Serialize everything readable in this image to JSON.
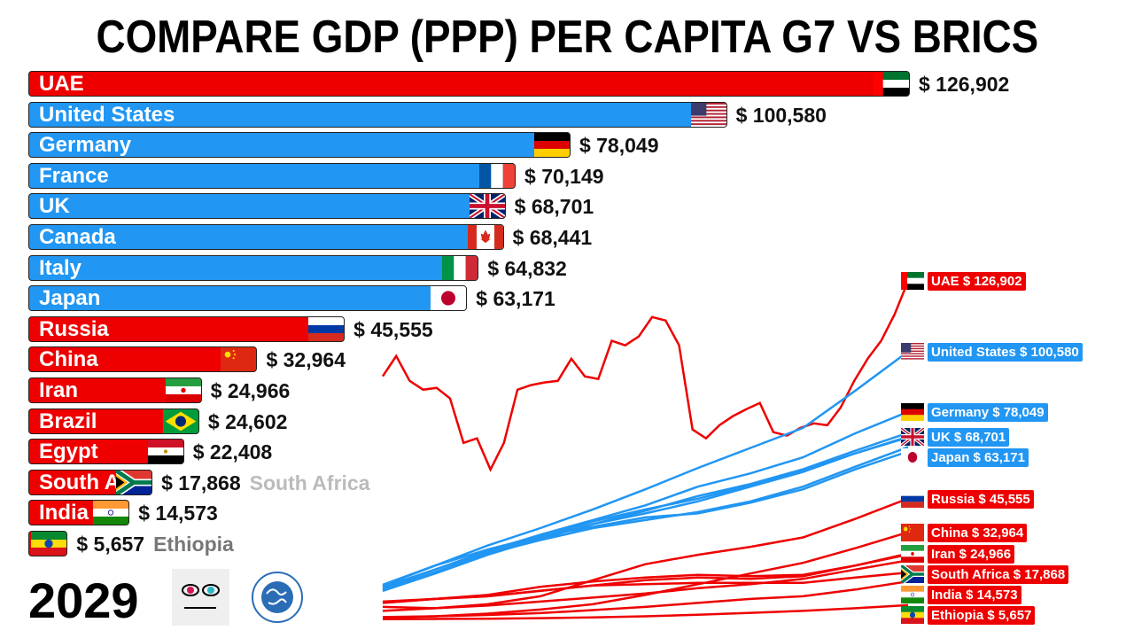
{
  "title": "COMPARE GDP (PPP) PER CAPITA G7 VS BRICS",
  "year": "2029",
  "logos": {
    "channel": "Mstats",
    "source": "International Monetary Fund"
  },
  "colors": {
    "brics": "#ee0000",
    "g7": "#2196f3"
  },
  "chart_data": {
    "type": "bar",
    "title": "COMPARE GDP (PPP) PER CAPITA G7 VS BRICS",
    "unit": "$",
    "categories": [
      "UAE",
      "United States",
      "Germany",
      "France",
      "UK",
      "Canada",
      "Italy",
      "Japan",
      "Russia",
      "China",
      "Iran",
      "Brazil",
      "Egypt",
      "South Africa",
      "India",
      "Ethiopia"
    ],
    "bars": [
      {
        "name": "UAE",
        "label": "UAE",
        "value": 126902,
        "value_label": "$ 126,902",
        "group": "brics",
        "flag": "uae-flag"
      },
      {
        "name": "United States",
        "label": "United States",
        "value": 100580,
        "value_label": "$ 100,580",
        "group": "g7",
        "flag": "usa-flag"
      },
      {
        "name": "Germany",
        "label": "Germany",
        "value": 78049,
        "value_label": "$ 78,049",
        "group": "g7",
        "flag": "germany-flag"
      },
      {
        "name": "France",
        "label": "France",
        "value": 70149,
        "value_label": "$ 70,149",
        "group": "g7",
        "flag": "france-flag"
      },
      {
        "name": "UK",
        "label": "UK",
        "value": 68701,
        "value_label": "$ 68,701",
        "group": "g7",
        "flag": "uk-flag"
      },
      {
        "name": "Canada",
        "label": "Canada",
        "value": 68441,
        "value_label": "$ 68,441",
        "group": "g7",
        "flag": "canada-flag"
      },
      {
        "name": "Italy",
        "label": "Italy",
        "value": 64832,
        "value_label": "$ 64,832",
        "group": "g7",
        "flag": "italy-flag"
      },
      {
        "name": "Japan",
        "label": "Japan",
        "value": 63171,
        "value_label": "$ 63,171",
        "group": "g7",
        "flag": "japan-flag"
      },
      {
        "name": "Russia",
        "label": "Russia",
        "value": 45555,
        "value_label": "$ 45,555",
        "group": "brics",
        "flag": "russia-flag"
      },
      {
        "name": "China",
        "label": "China",
        "value": 32964,
        "value_label": "$ 32,964",
        "group": "brics",
        "flag": "china-flag"
      },
      {
        "name": "Iran",
        "label": "Iran",
        "value": 24966,
        "value_label": "$ 24,966",
        "group": "brics",
        "flag": "iran-flag"
      },
      {
        "name": "Brazil",
        "label": "Brazil",
        "value": 24602,
        "value_label": "$ 24,602",
        "group": "brics",
        "flag": "brazil-flag"
      },
      {
        "name": "Egypt",
        "label": "Egypt",
        "value": 22408,
        "value_label": "$ 22,408",
        "group": "brics",
        "flag": "egypt-flag"
      },
      {
        "name": "South Africa",
        "label": "South Africa",
        "value": 17868,
        "value_label": "$ 17,868",
        "group": "brics",
        "flag": "south-africa-flag",
        "outside_name": "South Africa"
      },
      {
        "name": "India",
        "label": "India",
        "value": 14573,
        "value_label": "$ 14,573",
        "group": "brics",
        "flag": "india-flag"
      },
      {
        "name": "Ethiopia",
        "label": "",
        "value": 5657,
        "value_label": "$ 5,657",
        "group": "brics",
        "flag": "ethiopia-flag",
        "outside_name": "Ethiopia"
      }
    ],
    "line_chart": {
      "type": "line",
      "ylim": [
        0,
        130000
      ],
      "grid": false,
      "series": [
        {
          "name": "UAE",
          "label": "UAE $ 126,902",
          "group": "brics",
          "flag": "uae-flag",
          "values": [
            91300,
            98900,
            89600,
            86300,
            87000,
            83000,
            66400,
            68100,
            56400,
            66400,
            86300,
            88000,
            89000,
            89600,
            97900,
            91300,
            90300,
            104600,
            102900,
            106200,
            113500,
            112200,
            102900,
            71400,
            68100,
            73000,
            76400,
            79000,
            81300,
            70400,
            69100,
            72000,
            73700,
            73000,
            79700,
            89600,
            97900,
            104600,
            114500,
            126902
          ]
        },
        {
          "name": "United States",
          "label": "United States $ 100,580",
          "group": "g7",
          "flag": "usa-flag",
          "values": [
            13300,
            20500,
            28000,
            34500,
            41500,
            49000,
            57000,
            64500,
            72000,
            86000,
            100580
          ]
        },
        {
          "name": "Germany",
          "label": "Germany $ 78,049",
          "group": "g7",
          "flag": "germany-flag",
          "values": [
            12000,
            19000,
            26000,
            32000,
            37500,
            43000,
            50000,
            55000,
            61000,
            70000,
            78049
          ]
        },
        {
          "name": "France",
          "label": "",
          "group": "g7",
          "flag": "",
          "values": [
            11500,
            18000,
            25000,
            30500,
            36000,
            41000,
            46500,
            51000,
            56500,
            63500,
            70149
          ]
        },
        {
          "name": "Canada",
          "label": "",
          "group": "g7",
          "flag": "",
          "values": [
            12500,
            19000,
            25500,
            31000,
            37000,
            41500,
            45500,
            50500,
            56000,
            62500,
            68441
          ]
        },
        {
          "name": "UK",
          "label": "UK $ 68,701",
          "group": "g7",
          "flag": "uk-flag",
          "values": [
            11000,
            17500,
            24500,
            30500,
            36000,
            40000,
            44500,
            50000,
            55500,
            62500,
            68701
          ]
        },
        {
          "name": "Italy",
          "label": "",
          "group": "g7",
          "flag": "",
          "values": [
            11000,
            18000,
            25000,
            30000,
            34500,
            37500,
            40500,
            44500,
            50000,
            57500,
            64832
          ]
        },
        {
          "name": "Japan",
          "label": "Japan $ 63,171",
          "group": "g7",
          "flag": "japan-flag",
          "values": [
            13000,
            20500,
            26500,
            31500,
            35000,
            38500,
            40000,
            44000,
            49000,
            56500,
            63171
          ]
        },
        {
          "name": "Russia",
          "label": "Russia $ 45,555",
          "group": "brics",
          "flag": "russia-flag",
          "values": [
            5000,
            4500,
            6000,
            9000,
            15000,
            21000,
            24500,
            27500,
            31000,
            38000,
            45555
          ]
        },
        {
          "name": "China",
          "label": "China $ 32,964",
          "group": "brics",
          "flag": "china-flag",
          "values": [
            1000,
            1500,
            2500,
            4000,
            6000,
            9500,
            13500,
            17500,
            21500,
            27000,
            32964
          ]
        },
        {
          "name": "Brazil",
          "label": "",
          "group": "brics",
          "flag": "",
          "values": [
            6500,
            8000,
            9000,
            11000,
            13000,
            15000,
            16000,
            15500,
            16500,
            20500,
            24602
          ]
        },
        {
          "name": "Iran",
          "label": "Iran $ 24,966",
          "group": "brics",
          "flag": "iran-flag",
          "values": [
            6500,
            8000,
            9500,
            12500,
            14500,
            16000,
            17000,
            16500,
            17000,
            20500,
            24966
          ]
        },
        {
          "name": "Egypt",
          "label": "",
          "group": "brics",
          "flag": "",
          "values": [
            3500,
            4500,
            5500,
            7000,
            8500,
            10000,
            12000,
            13500,
            15500,
            19000,
            22408
          ]
        },
        {
          "name": "India",
          "label": "India $ 14,573",
          "group": "brics",
          "flag": "india-flag",
          "values": [
            1200,
            1500,
            2000,
            2700,
            3800,
            5000,
            6500,
            8000,
            9000,
            11500,
            14573
          ]
        },
        {
          "name": "South Africa",
          "label": "South Africa $ 17,868",
          "group": "brics",
          "flag": "south-africa-flag",
          "values": [
            7000,
            8000,
            9000,
            11000,
            13000,
            13500,
            14000,
            14000,
            14000,
            16000,
            17868
          ]
        },
        {
          "name": "Ethiopia",
          "label": "Ethiopia $ 5,657",
          "group": "brics",
          "flag": "ethiopia-flag",
          "values": [
            400,
            500,
            600,
            800,
            1100,
            1500,
            2100,
            2800,
            3500,
            4500,
            5657
          ]
        }
      ]
    }
  }
}
